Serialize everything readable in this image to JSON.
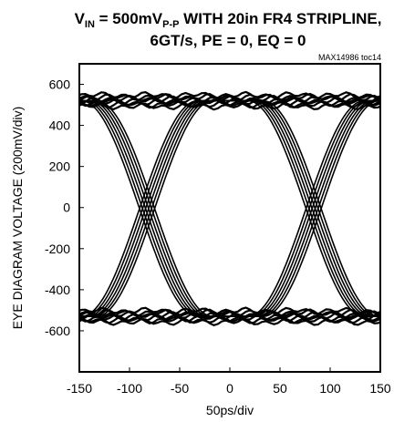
{
  "chart_data": {
    "type": "line",
    "title": {
      "line1_prefix": "V",
      "line1_prefix_sub": "IN",
      "line1_mid": " = 500mV",
      "line1_mid_sub": "P-P",
      "line1_suffix": " WITH 20in FR4 STRIPLINE,",
      "line2": "6GT/s, PE = 0, EQ = 0"
    },
    "annotation": "MAX14986 toc14",
    "xlabel": "50ps/div",
    "ylabel": "EYE DIAGRAM VOLTAGE (200mV/div)",
    "xlim": [
      -150,
      150
    ],
    "ylim": [
      -800,
      700
    ],
    "x_ticks": [
      "-150",
      "-100",
      "-50",
      "0",
      "50",
      "100",
      "150"
    ],
    "x_tick_values": [
      -150,
      -100,
      -50,
      0,
      50,
      100,
      150
    ],
    "y_ticks": [
      "600",
      "400",
      "200",
      "0",
      "-200",
      "-400",
      "-600"
    ],
    "y_tick_values": [
      600,
      400,
      200,
      0,
      -200,
      -400,
      -600
    ],
    "eye": {
      "high_level": 520,
      "low_level": -530,
      "crossings_x": [
        -83,
        83
      ],
      "crossing_y": 0,
      "rise_time_ps": 58,
      "band_offsets_ps": [
        -7,
        -4,
        -1,
        2,
        5,
        8
      ]
    },
    "grid": false,
    "color": "#000000"
  }
}
